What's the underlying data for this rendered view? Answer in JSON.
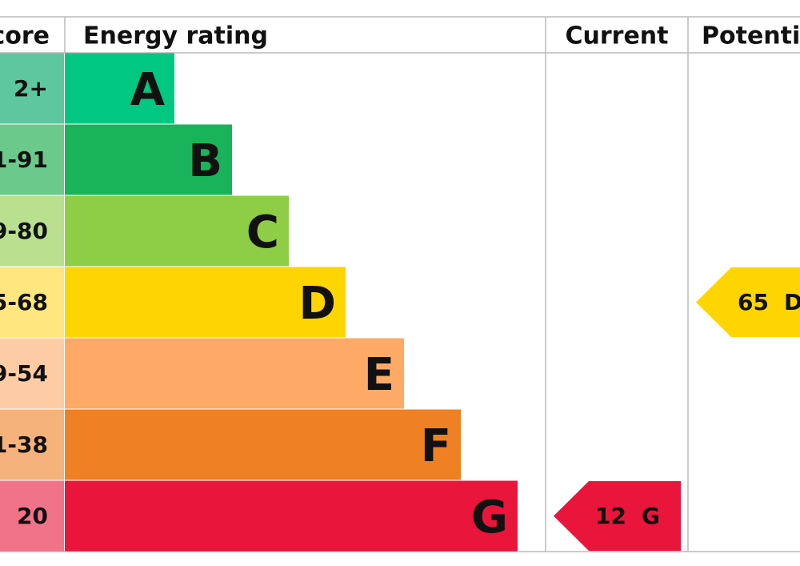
{
  "header": {
    "score": "core",
    "rating": "Energy rating",
    "current": "Current",
    "potential": "Potenti"
  },
  "rows": [
    {
      "score": "2+",
      "band": "A",
      "color": "#00c781",
      "score_color": "#5fc7a0"
    },
    {
      "score": "1-91",
      "band": "B",
      "color": "#19b459",
      "score_color": "#6ac98b"
    },
    {
      "score": "9-80",
      "band": "C",
      "color": "#8dce46",
      "score_color": "#b9e08e"
    },
    {
      "score": "5-68",
      "band": "D",
      "color": "#ffd500",
      "score_color": "#ffe67f"
    },
    {
      "score": "9-54",
      "band": "E",
      "color": "#fcaa65",
      "score_color": "#fdcca4"
    },
    {
      "score": "1-38",
      "band": "F",
      "color": "#ef8023",
      "score_color": "#f6b27b"
    },
    {
      "score": "20",
      "band": "G",
      "color": "#e9153b",
      "score_color": "#f1738a"
    }
  ],
  "current": {
    "value": 12,
    "band": "G"
  },
  "potential": {
    "value": 65,
    "band": "D"
  }
}
